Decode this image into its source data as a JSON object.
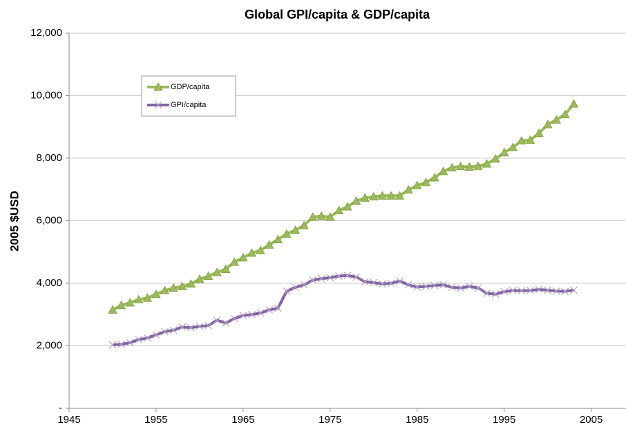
{
  "chart_data": {
    "type": "line",
    "title": "Global GPI/capita & GDP/capita",
    "ylabel": "2005 $USD",
    "x": [
      1950,
      1951,
      1952,
      1953,
      1954,
      1955,
      1956,
      1957,
      1958,
      1959,
      1960,
      1961,
      1962,
      1963,
      1964,
      1965,
      1966,
      1967,
      1968,
      1969,
      1970,
      1971,
      1972,
      1973,
      1974,
      1975,
      1976,
      1977,
      1978,
      1979,
      1980,
      1981,
      1982,
      1983,
      1984,
      1985,
      1986,
      1987,
      1988,
      1989,
      1990,
      1991,
      1992,
      1993,
      1994,
      1995,
      1996,
      1997,
      1998,
      1999,
      2000,
      2001,
      2002,
      2003
    ],
    "series": [
      {
        "name": "GDP/capita",
        "color": "#9bbb59",
        "marker": "triangle",
        "values": [
          3150,
          3300,
          3380,
          3480,
          3530,
          3650,
          3770,
          3850,
          3900,
          3980,
          4130,
          4230,
          4350,
          4450,
          4680,
          4820,
          4970,
          5050,
          5230,
          5400,
          5580,
          5700,
          5850,
          6120,
          6150,
          6120,
          6330,
          6450,
          6630,
          6730,
          6770,
          6800,
          6800,
          6800,
          6990,
          7130,
          7230,
          7380,
          7580,
          7700,
          7740,
          7720,
          7750,
          7820,
          7980,
          8180,
          8350,
          8560,
          8580,
          8800,
          9080,
          9230,
          9400,
          9740
        ]
      },
      {
        "name": "GPI/capita",
        "color": "#8064a2",
        "marker": "x",
        "values": [
          2030,
          2050,
          2100,
          2200,
          2250,
          2350,
          2450,
          2500,
          2600,
          2580,
          2620,
          2650,
          2820,
          2730,
          2870,
          2970,
          3000,
          3050,
          3150,
          3200,
          3750,
          3870,
          3950,
          4100,
          4150,
          4180,
          4230,
          4250,
          4200,
          4050,
          4020,
          3980,
          4000,
          4070,
          3950,
          3880,
          3900,
          3930,
          3950,
          3870,
          3850,
          3900,
          3850,
          3680,
          3650,
          3730,
          3770,
          3760,
          3770,
          3800,
          3780,
          3750,
          3740,
          3780
        ]
      }
    ],
    "xlim": [
      1945,
      2009
    ],
    "xticks": [
      1945,
      1955,
      1965,
      1975,
      1985,
      1995,
      2005
    ],
    "ylim": [
      0,
      12000
    ],
    "yticks": [
      {
        "value": 0,
        "label": "-"
      },
      {
        "value": 2000,
        "label": "2,000"
      },
      {
        "value": 4000,
        "label": "4,000"
      },
      {
        "value": 6000,
        "label": "6,000"
      },
      {
        "value": 8000,
        "label": "8,000"
      },
      {
        "value": 10000,
        "label": "10,000"
      },
      {
        "value": 12000,
        "label": "12,000"
      }
    ],
    "grid": true,
    "legend": "upper left"
  }
}
